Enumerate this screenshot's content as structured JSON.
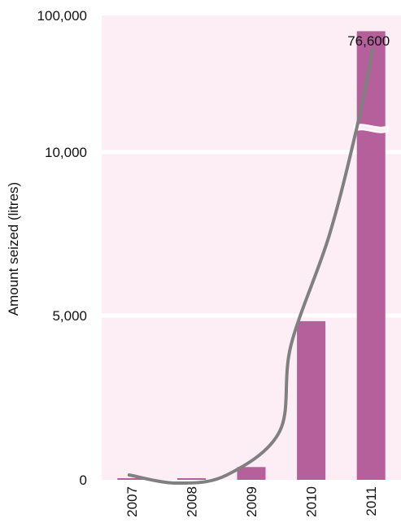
{
  "chart_data": {
    "type": "bar",
    "categories": [
      "2007",
      "2008",
      "2009",
      "2010",
      "2011"
    ],
    "values": [
      20,
      15,
      390,
      4840,
      76600
    ],
    "ylabel": "Amount seized (litres)",
    "y_ticks": [
      "0",
      "5,000",
      "10,000",
      "100,000"
    ],
    "y_tick_values": [
      0,
      5000,
      10000,
      100000
    ],
    "axis_break_after": 10000,
    "trend_line": true,
    "data_labels": [
      "76,600"
    ],
    "grid": "horizontal",
    "colors": {
      "bar": "#b5609b",
      "plot_background": "#fdeef5",
      "trend_line": "#808080",
      "gridline": "#ffffff"
    }
  }
}
